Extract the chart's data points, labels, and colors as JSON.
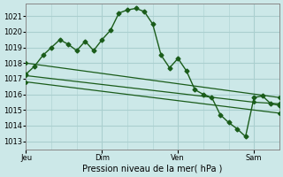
{
  "bg_color": "#cce8e8",
  "grid_color": "#aacfcf",
  "line_color": "#1a5c1a",
  "xlabel": "Pression niveau de la mer( hPa )",
  "ylim": [
    1012.5,
    1021.8
  ],
  "yticks": [
    1013,
    1014,
    1015,
    1016,
    1017,
    1018,
    1019,
    1020,
    1021
  ],
  "xlim": [
    0,
    240
  ],
  "xtick_positions": [
    0,
    72,
    144,
    216
  ],
  "xtick_labels": [
    "Jeu",
    "Dim",
    "Ven",
    "Sam"
  ],
  "vline_positions": [
    72,
    144,
    216
  ],
  "line1_x": [
    0,
    8,
    16,
    24,
    32,
    40,
    48,
    56,
    64,
    72,
    80,
    88,
    96,
    104,
    112,
    120,
    128,
    136,
    144,
    152,
    160,
    168,
    176,
    184,
    192,
    200,
    208,
    216,
    224,
    232,
    240
  ],
  "line1_y": [
    1017.3,
    1017.8,
    1018.5,
    1019.0,
    1019.5,
    1019.2,
    1018.8,
    1019.4,
    1018.8,
    1019.5,
    1020.1,
    1021.2,
    1021.4,
    1021.5,
    1021.3,
    1020.5,
    1018.5,
    1017.7,
    1018.3,
    1017.5,
    1016.3,
    1016.0,
    1015.8,
    1014.7,
    1014.2,
    1013.8,
    1013.3,
    1015.8,
    1015.9,
    1015.4,
    1015.3
  ],
  "line2_x": [
    0,
    240
  ],
  "line2_y": [
    1018.0,
    1015.8
  ],
  "line3_x": [
    0,
    216,
    240
  ],
  "line3_y": [
    1017.2,
    1015.5,
    1015.4
  ],
  "line4_x": [
    0,
    240
  ],
  "line4_y": [
    1016.8,
    1014.8
  ]
}
